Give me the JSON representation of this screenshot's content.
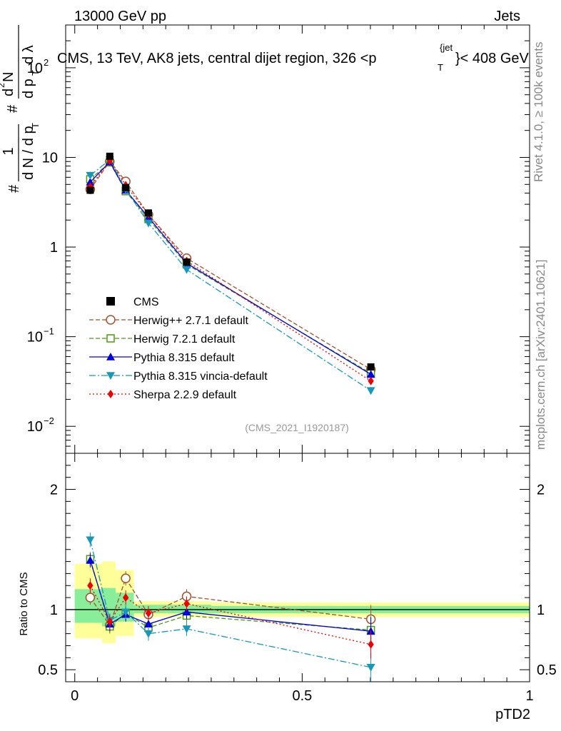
{
  "header": {
    "energy": "13000 GeV pp",
    "category": "Jets",
    "title_main": "CMS, 13 TeV, AK8 jets, central dijet region, 326 <p",
    "title_sub": "T",
    "title_sup": "{jet",
    "title_end": "}< 408 GeV"
  },
  "side_labels": {
    "rivet": "Rivet 4.1.0, ≥ 100k events",
    "mcplots": "mcplots.cern.ch [arXiv:2401.10621]"
  },
  "analysis_id": "(CMS_2021_I1920187)",
  "yaxis_main": {
    "label_prefix": "#",
    "frac_num": "1",
    "frac_den": "d N / d p",
    "frac_den_sub": "T",
    "hash2": "#",
    "d2": "d",
    "d2_sup": "2",
    "d2_N": "N",
    "dpT": "d p",
    "dpT_sub": "T",
    "dlambda": "d λ"
  },
  "ratio_axis_label": "Ratio to CMS",
  "x_axis_label": "pTD2",
  "colors": {
    "cms": "#000000",
    "herwigpp": "#a0522d",
    "herwig7": "#4c9a14",
    "pythia": "#0000dd",
    "vincia": "#1898b8",
    "sherpa": "#ee0000",
    "band_yellow": "#ffff99",
    "band_green": "#88ee99"
  },
  "chart_data": [
    {
      "type": "scatter",
      "panel": "main",
      "yscale": "log",
      "xlim": [
        -0.02,
        1.0
      ],
      "ylim": [
        0.005,
        300
      ],
      "xticks": [
        0,
        0.5,
        1
      ],
      "yticks": [
        {
          "value": 0.01,
          "label": "10",
          "sup": "−2"
        },
        {
          "value": 0.1,
          "label": "10",
          "sup": "−1"
        },
        {
          "value": 1,
          "label": "1",
          "sup": ""
        },
        {
          "value": 10,
          "label": "10",
          "sup": ""
        },
        {
          "value": 100,
          "label": "10",
          "sup": "2"
        }
      ],
      "x": [
        0.034,
        0.077,
        0.112,
        0.162,
        0.246,
        0.651
      ],
      "data": {
        "name": "CMS",
        "values": [
          4.3,
          10.3,
          4.6,
          2.4,
          0.68,
          0.046
        ]
      },
      "series": [
        {
          "key": "herwigpp",
          "name": "Herwig++ 2.7.1 default",
          "marker": "circle-open",
          "dash": "6,3",
          "values": [
            4.4,
            9.0,
            5.4,
            2.3,
            0.75,
            0.043
          ]
        },
        {
          "key": "herwig7",
          "name": "Herwig 7.2.1 default",
          "marker": "square-open",
          "dash": "6,3",
          "values": [
            5.7,
            8.8,
            4.2,
            2.05,
            0.64,
            0.039
          ]
        },
        {
          "key": "pythia",
          "name": "Pythia 8.315 default",
          "marker": "triangle-up",
          "dash": "",
          "values": [
            5.3,
            8.9,
            4.3,
            2.15,
            0.66,
            0.038
          ]
        },
        {
          "key": "vincia",
          "name": "Pythia 8.315 vincia-default",
          "marker": "triangle-down",
          "dash": "9,3,2,3",
          "values": [
            6.3,
            9.4,
            4.4,
            1.85,
            0.56,
            0.025
          ]
        },
        {
          "key": "sherpa",
          "name": "Sherpa 2.2.9 default",
          "marker": "diamond",
          "dash": "2,3",
          "values": [
            4.7,
            9.2,
            4.9,
            2.3,
            0.7,
            0.032
          ]
        }
      ]
    },
    {
      "type": "scatter",
      "panel": "ratio",
      "xlim": [
        -0.02,
        1.0
      ],
      "ylim": [
        0.4,
        2.3
      ],
      "yticks": [
        0.5,
        1,
        2
      ],
      "ytick_labels": [
        "0.5",
        "1",
        "2"
      ],
      "xtick_labels": [
        "0",
        "0.5",
        "1"
      ],
      "x": [
        0.034,
        0.077,
        0.112,
        0.162,
        0.246,
        0.651
      ],
      "bands": {
        "bins": [
          [
            0.0,
            0.06
          ],
          [
            0.06,
            0.09
          ],
          [
            0.09,
            0.13
          ],
          [
            0.13,
            0.2
          ],
          [
            0.2,
            0.3
          ],
          [
            0.3,
            1.0
          ]
        ],
        "yellow": [
          [
            0.76,
            1.38
          ],
          [
            0.72,
            1.4
          ],
          [
            0.78,
            1.33
          ],
          [
            0.94,
            1.07
          ],
          [
            0.94,
            1.07
          ],
          [
            0.94,
            1.06
          ]
        ],
        "green": [
          [
            0.89,
            1.17
          ],
          [
            0.86,
            1.18
          ],
          [
            0.9,
            1.14
          ],
          [
            0.97,
            1.04
          ],
          [
            0.97,
            1.04
          ],
          [
            0.97,
            1.03
          ]
        ]
      },
      "series": [
        {
          "key": "herwigpp",
          "name": "Herwig++ 2.7.1 default",
          "marker": "circle-open",
          "dash": "6,3",
          "values": [
            1.1,
            0.87,
            1.26,
            0.96,
            1.11,
            0.92
          ]
        },
        {
          "key": "herwig7",
          "name": "Herwig 7.2.1 default",
          "marker": "square-open",
          "dash": "6,3",
          "values": [
            1.42,
            0.86,
            0.97,
            0.85,
            0.95,
            0.83
          ]
        },
        {
          "key": "pythia",
          "name": "Pythia 8.315 default",
          "marker": "triangle-up",
          "dash": "",
          "values": [
            1.41,
            0.88,
            0.96,
            0.88,
            0.98,
            0.82
          ]
        },
        {
          "key": "vincia",
          "name": "Pythia 8.315 vincia-default",
          "marker": "triangle-down",
          "dash": "9,3,2,3",
          "values": [
            1.58,
            0.91,
            0.98,
            0.8,
            0.84,
            0.52
          ]
        },
        {
          "key": "sherpa",
          "name": "Sherpa 2.2.9 default",
          "marker": "diamond",
          "dash": "2,3",
          "values": [
            1.2,
            0.9,
            1.1,
            0.97,
            1.05,
            0.71
          ]
        }
      ]
    }
  ]
}
